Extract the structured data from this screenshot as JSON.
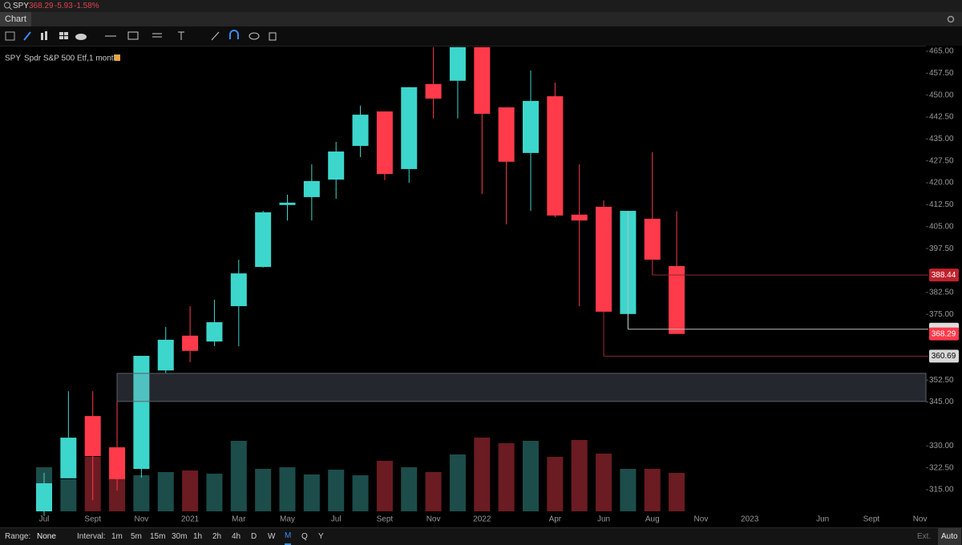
{
  "header": {
    "symbol": "SPY",
    "last": "368.29",
    "change": "-5.93",
    "change_pct": "-1.58%"
  },
  "tab": "Chart",
  "chart_data": {
    "type": "candlestick",
    "symbol": "SPY",
    "title": "Spdr S&P 500 Etf,1 month",
    "categories": [
      "Jul",
      null,
      "Sept",
      null,
      "Nov",
      null,
      "2021",
      null,
      "Mar",
      null,
      "May",
      null,
      "Jul",
      null,
      "Sept",
      null,
      "Nov",
      null,
      "2022",
      null,
      null,
      "Apr",
      null,
      "Jun",
      null,
      "Aug",
      null,
      "Nov",
      null,
      "2023",
      null,
      null,
      "Jun",
      null,
      "Sept",
      null,
      "Nov"
    ],
    "open": [
      307.6,
      318.9,
      340.2,
      329.5,
      322.1,
      355.8,
      367.7,
      365.7,
      377.8,
      391.2,
      412.4,
      415.1,
      421.1,
      432.6,
      444.4,
      424.7,
      453.8,
      454.9,
      466.4,
      445.8,
      430.2,
      449.6,
      409.1,
      411.8,
      375.1,
      407.7,
      391.5,
      null,
      null,
      null,
      null,
      null,
      null,
      null,
      null,
      null,
      null
    ],
    "high": [
      320.8,
      348.7,
      348.7,
      345.4,
      360.8,
      370.7,
      377.8,
      380.0,
      393.7,
      410.4,
      415.9,
      426.3,
      434.0,
      446.4,
      444.4,
      452.7,
      466.4,
      466.4,
      466.4,
      445.8,
      458.4,
      454.3,
      426.3,
      414.0,
      410.4,
      430.5,
      410.2,
      null,
      null,
      null,
      null,
      null,
      null,
      null,
      null,
      null,
      null
    ],
    "low": [
      306.0,
      318.9,
      311.4,
      314.7,
      319.1,
      354.8,
      358.6,
      364.1,
      364.1,
      391.0,
      407.1,
      407.1,
      414.5,
      428.8,
      420.9,
      420.0,
      442.0,
      442.0,
      416.2,
      405.8,
      410.4,
      408.2,
      377.8,
      360.69,
      369.9,
      388.44,
      368.29,
      null,
      null,
      null,
      null,
      null,
      null,
      null,
      null,
      null,
      null
    ],
    "close": [
      317.2,
      332.8,
      326.5,
      318.6,
      360.8,
      366.3,
      362.5,
      372.3,
      389.0,
      409.9,
      413.2,
      420.6,
      430.7,
      443.3,
      423.0,
      452.7,
      448.8,
      466.4,
      443.6,
      427.2,
      448.0,
      408.8,
      407.1,
      375.9,
      410.4,
      393.7,
      368.29,
      null,
      null,
      null,
      null,
      null,
      null,
      null,
      null,
      null,
      null
    ],
    "volume": [
      55,
      40,
      68,
      40,
      45,
      49,
      51,
      47,
      88,
      53,
      55,
      46,
      52,
      45,
      63,
      55,
      49,
      71,
      92,
      85,
      88,
      68,
      89,
      72,
      53,
      53,
      48,
      null,
      null,
      null,
      null,
      null,
      null,
      null,
      null,
      null,
      null
    ],
    "up_color": "#3dd6cc",
    "down_color": "#ff3a4a",
    "up_volume_color": "#1c4d4a",
    "down_volume_color": "#6b1b22",
    "ylim": [
      307.6,
      466.9
    ],
    "yticks": [
      {
        "value": 465,
        "label": "465.00"
      },
      {
        "value": 457.5,
        "label": "457.50"
      },
      {
        "value": 450,
        "label": "450.00"
      },
      {
        "value": 442.5,
        "label": "442.50"
      },
      {
        "value": 435,
        "label": "435.00"
      },
      {
        "value": 427.5,
        "label": "427.50"
      },
      {
        "value": 420,
        "label": "420.00"
      },
      {
        "value": 412.5,
        "label": "412.50"
      },
      {
        "value": 405,
        "label": "405.00"
      },
      {
        "value": 397.5,
        "label": "397.50"
      },
      {
        "value": 382.5,
        "label": "382.50"
      },
      {
        "value": 375,
        "label": "375.00"
      },
      {
        "value": 352.5,
        "label": "352.50"
      },
      {
        "value": 345,
        "label": "345.00"
      },
      {
        "value": 330,
        "label": "330.00"
      },
      {
        "value": 322.5,
        "label": "322.50"
      },
      {
        "value": 315,
        "label": "315.00"
      }
    ],
    "zone": [
      345.2,
      354.8
    ]
  },
  "footer": {
    "range_label": "Range:",
    "range": "None",
    "interval_label": "Interval:",
    "intervals": [
      "1m",
      "5m",
      "15m",
      "30m",
      "1h",
      "2h",
      "4h",
      "D",
      "W",
      "M",
      "Q",
      "Y"
    ],
    "ext": "Ext.",
    "auto": "Auto"
  }
}
